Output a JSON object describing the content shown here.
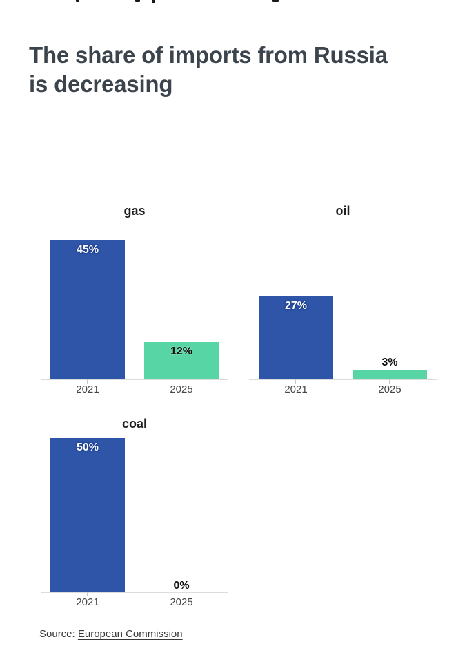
{
  "header": {
    "title": "The share of imports from Russia is decreasing",
    "title_lines": [
      "The share of imports from Russia",
      "is decreasing"
    ]
  },
  "chart_data": {
    "type": "bar",
    "title": "The share of imports from Russia is decreasing",
    "categories": [
      "2021",
      "2025"
    ],
    "unit": "%",
    "ylim": [
      0,
      50
    ],
    "grid": false,
    "legend": "none",
    "series": [
      {
        "name": "gas",
        "values": [
          45,
          12
        ],
        "labels": [
          "45%",
          "12%"
        ]
      },
      {
        "name": "oil",
        "values": [
          27,
          3
        ],
        "labels": [
          "27%",
          "3%"
        ]
      },
      {
        "name": "coal",
        "values": [
          50,
          0
        ],
        "labels": [
          "50%",
          "0%"
        ]
      }
    ],
    "colors": [
      "#2f55a8",
      "#58d5a4"
    ],
    "bar_label_colors": [
      "#ffffff",
      "#0e0e0e"
    ],
    "axis_line_color": "#dcdcdc",
    "x_label_color": "#464646"
  },
  "footer": {
    "source_label": "Source:",
    "source_link": "European Commission"
  }
}
